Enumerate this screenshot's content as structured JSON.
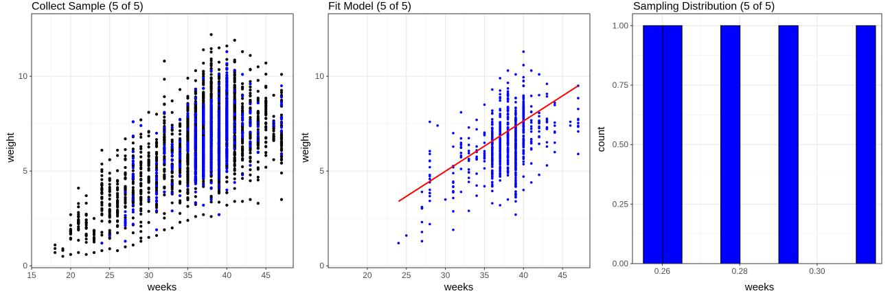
{
  "chart_data": [
    {
      "type": "scatter",
      "title": "Collect Sample (5 of 5)",
      "xlabel": "weeks",
      "ylabel": "weight",
      "xlim": [
        15,
        48.5
      ],
      "ylim": [
        -0.1,
        13.3
      ],
      "xticks": [
        "15",
        "20",
        "25",
        "30",
        "35",
        "40",
        "45"
      ],
      "yticks": [
        "0",
        "5",
        "10"
      ],
      "grid": true,
      "population_color": "#000000",
      "sample_color": "#0000ff",
      "population_summary": [
        {
          "weeks": 18,
          "min": 0.7,
          "max": 1.1
        },
        {
          "weeks": 19,
          "min": 0.5,
          "max": 0.9
        },
        {
          "weeks": 20,
          "min": 0.6,
          "max": 2.7
        },
        {
          "weeks": 21,
          "min": 0.7,
          "max": 4.1
        },
        {
          "weeks": 22,
          "min": 0.6,
          "max": 3.7
        },
        {
          "weeks": 23,
          "min": 0.7,
          "max": 2.5
        },
        {
          "weeks": 24,
          "min": 0.8,
          "max": 6.1
        },
        {
          "weeks": 25,
          "min": 0.9,
          "max": 5.6
        },
        {
          "weeks": 26,
          "min": 0.8,
          "max": 6.1
        },
        {
          "weeks": 27,
          "min": 1.0,
          "max": 6.7
        },
        {
          "weeks": 28,
          "min": 1.1,
          "max": 7.6
        },
        {
          "weeks": 29,
          "min": 1.3,
          "max": 7.7
        },
        {
          "weeks": 30,
          "min": 1.5,
          "max": 8.1
        },
        {
          "weeks": 31,
          "min": 1.6,
          "max": 8.0
        },
        {
          "weeks": 32,
          "min": 1.9,
          "max": 10.8
        },
        {
          "weeks": 33,
          "min": 2.0,
          "max": 8.7
        },
        {
          "weeks": 34,
          "min": 2.3,
          "max": 9.3
        },
        {
          "weeks": 35,
          "min": 2.4,
          "max": 9.9
        },
        {
          "weeks": 36,
          "min": 2.6,
          "max": 10.3
        },
        {
          "weeks": 37,
          "min": 2.7,
          "max": 11.4
        },
        {
          "weeks": 38,
          "min": 2.6,
          "max": 12.2
        },
        {
          "weeks": 39,
          "min": 2.7,
          "max": 11.5
        },
        {
          "weeks": 40,
          "min": 3.2,
          "max": 11.6
        },
        {
          "weeks": 41,
          "min": 3.4,
          "max": 11.9
        },
        {
          "weeks": 42,
          "min": 3.4,
          "max": 11.3
        },
        {
          "weeks": 43,
          "min": 3.5,
          "max": 11.1
        },
        {
          "weeks": 44,
          "min": 3.3,
          "max": 10.5
        },
        {
          "weeks": 45,
          "min": 5.2,
          "max": 10.7
        },
        {
          "weeks": 46,
          "min": 5.6,
          "max": 9.0
        },
        {
          "weeks": 47,
          "min": 3.5,
          "max": 10.1
        }
      ],
      "sample_summary": [
        {
          "weeks": 24,
          "min": 1.2,
          "max": 1.2
        },
        {
          "weeks": 25,
          "min": 1.6,
          "max": 1.6
        },
        {
          "weeks": 27,
          "min": 1.3,
          "max": 3.9
        },
        {
          "weeks": 28,
          "min": 2.2,
          "max": 7.6
        },
        {
          "weeks": 29,
          "min": 7.4,
          "max": 7.4
        },
        {
          "weeks": 30,
          "min": 3.5,
          "max": 3.5
        },
        {
          "weeks": 31,
          "min": 1.9,
          "max": 7.0
        },
        {
          "weeks": 32,
          "min": 3.9,
          "max": 8.1
        },
        {
          "weeks": 33,
          "min": 2.9,
          "max": 7.3
        },
        {
          "weeks": 34,
          "min": 3.7,
          "max": 7.7
        },
        {
          "weeks": 35,
          "min": 4.2,
          "max": 8.5
        },
        {
          "weeks": 36,
          "min": 3.3,
          "max": 9.3
        },
        {
          "weeks": 37,
          "min": 3.2,
          "max": 9.9
        },
        {
          "weeks": 38,
          "min": 3.5,
          "max": 10.3
        },
        {
          "weeks": 39,
          "min": 2.7,
          "max": 10.1
        },
        {
          "weeks": 40,
          "min": 4.0,
          "max": 11.3
        },
        {
          "weeks": 41,
          "min": 4.4,
          "max": 10.3
        },
        {
          "weeks": 42,
          "min": 4.8,
          "max": 10.1
        },
        {
          "weeks": 43,
          "min": 5.3,
          "max": 9.6
        },
        {
          "weeks": 44,
          "min": 6.0,
          "max": 8.6
        },
        {
          "weeks": 46,
          "min": 7.4,
          "max": 7.6
        },
        {
          "weeks": 47,
          "min": 5.9,
          "max": 9.5
        }
      ]
    },
    {
      "type": "scatter",
      "title": "Fit Model (5 of 5)",
      "xlabel": "weeks",
      "ylabel": "weight",
      "xlim": [
        15,
        48.5
      ],
      "ylim": [
        -0.1,
        13.3
      ],
      "xticks": [
        "20",
        "25",
        "30",
        "35",
        "40",
        "45"
      ],
      "yticks": [
        "0",
        "5",
        "10"
      ],
      "grid": true,
      "point_color": "#0000ff",
      "fit_color": "#ff0000",
      "fit_line": {
        "x": [
          24,
          47
        ],
        "y": [
          3.4,
          9.5
        ]
      },
      "sample_summary": [
        {
          "weeks": 24,
          "min": 1.2,
          "max": 1.2
        },
        {
          "weeks": 25,
          "min": 1.6,
          "max": 1.6
        },
        {
          "weeks": 27,
          "min": 1.3,
          "max": 3.9
        },
        {
          "weeks": 28,
          "min": 2.2,
          "max": 7.6
        },
        {
          "weeks": 29,
          "min": 7.4,
          "max": 7.4
        },
        {
          "weeks": 30,
          "min": 3.5,
          "max": 3.5
        },
        {
          "weeks": 31,
          "min": 1.9,
          "max": 7.0
        },
        {
          "weeks": 32,
          "min": 3.9,
          "max": 8.1
        },
        {
          "weeks": 33,
          "min": 2.9,
          "max": 7.3
        },
        {
          "weeks": 34,
          "min": 3.7,
          "max": 7.7
        },
        {
          "weeks": 35,
          "min": 4.2,
          "max": 8.5
        },
        {
          "weeks": 36,
          "min": 3.3,
          "max": 9.3
        },
        {
          "weeks": 37,
          "min": 3.2,
          "max": 9.9
        },
        {
          "weeks": 38,
          "min": 3.5,
          "max": 10.3
        },
        {
          "weeks": 39,
          "min": 2.7,
          "max": 10.1
        },
        {
          "weeks": 40,
          "min": 4.0,
          "max": 11.3
        },
        {
          "weeks": 41,
          "min": 4.4,
          "max": 10.3
        },
        {
          "weeks": 42,
          "min": 4.8,
          "max": 10.1
        },
        {
          "weeks": 43,
          "min": 5.3,
          "max": 9.6
        },
        {
          "weeks": 44,
          "min": 6.0,
          "max": 8.6
        },
        {
          "weeks": 46,
          "min": 7.4,
          "max": 7.6
        },
        {
          "weeks": 47,
          "min": 5.9,
          "max": 9.5
        }
      ]
    },
    {
      "type": "bar",
      "title": "Sampling Distribution (5 of 5)",
      "xlabel": "weeks",
      "ylabel": "count",
      "xlim": [
        0.2523,
        0.3167
      ],
      "ylim": [
        0,
        1.05
      ],
      "xticks": [
        "0.26",
        "0.28",
        "0.30"
      ],
      "yticks": [
        "0.00",
        "0.25",
        "0.50",
        "0.75",
        "1.00"
      ],
      "grid": true,
      "bar_color": "#0000ff",
      "bins": [
        {
          "x0": 0.2551,
          "x1": 0.2601,
          "count": 1
        },
        {
          "x0": 0.2601,
          "x1": 0.2651,
          "count": 1
        },
        {
          "x0": 0.2651,
          "x1": 0.2701,
          "count": 0
        },
        {
          "x0": 0.2701,
          "x1": 0.2751,
          "count": 0
        },
        {
          "x0": 0.2751,
          "x1": 0.2801,
          "count": 1
        },
        {
          "x0": 0.2801,
          "x1": 0.2851,
          "count": 0
        },
        {
          "x0": 0.2851,
          "x1": 0.2901,
          "count": 0
        },
        {
          "x0": 0.2901,
          "x1": 0.2951,
          "count": 1
        },
        {
          "x0": 0.2951,
          "x1": 0.3001,
          "count": 0
        },
        {
          "x0": 0.3001,
          "x1": 0.3051,
          "count": 0
        },
        {
          "x0": 0.3051,
          "x1": 0.3101,
          "count": 0
        },
        {
          "x0": 0.3101,
          "x1": 0.3151,
          "count": 1
        }
      ]
    }
  ]
}
